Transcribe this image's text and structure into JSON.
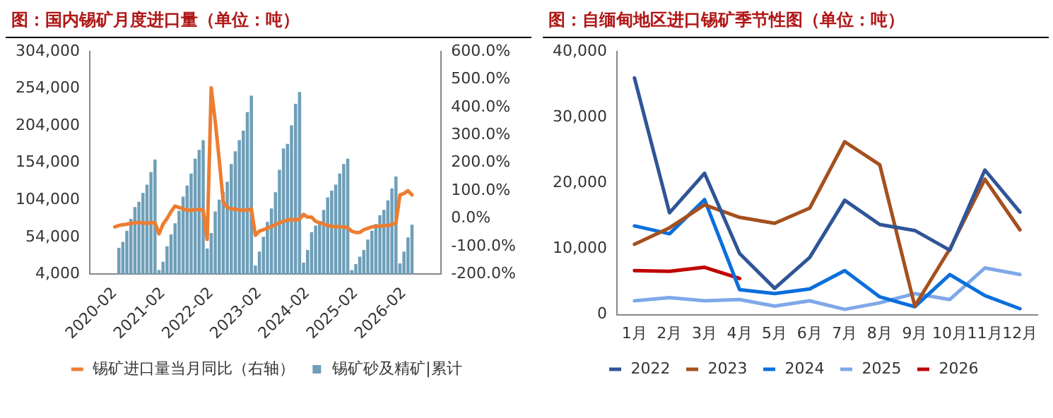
{
  "chart_data": [
    {
      "type": "bar",
      "title": "图：国内锡矿月度进口量（单位：吨）",
      "legend": "bottom",
      "x": [
        "2020-02",
        "2020-03",
        "2020-04",
        "2020-05",
        "2020-06",
        "2020-07",
        "2020-08",
        "2020-09",
        "2020-10",
        "2020-11",
        "2020-12",
        "2021-01",
        "2021-02",
        "2021-03",
        "2021-04",
        "2021-05",
        "2021-06",
        "2021-07",
        "2021-08",
        "2021-09",
        "2021-10",
        "2021-11",
        "2021-12",
        "2022-01",
        "2022-02",
        "2022-03",
        "2022-04",
        "2022-05",
        "2022-06",
        "2022-07",
        "2022-08",
        "2022-09",
        "2022-10",
        "2022-11",
        "2022-12",
        "2023-01",
        "2023-02",
        "2023-03",
        "2023-04",
        "2023-05",
        "2023-06",
        "2023-07",
        "2023-08",
        "2023-09",
        "2023-10",
        "2023-11",
        "2023-12",
        "2024-01",
        "2024-02",
        "2024-03",
        "2024-04",
        "2024-05",
        "2024-06",
        "2024-07",
        "2024-08",
        "2024-09",
        "2024-10",
        "2024-11",
        "2024-12",
        "2025-01",
        "2025-02",
        "2025-03",
        "2025-04",
        "2025-05",
        "2025-06",
        "2025-07",
        "2025-08",
        "2025-09",
        "2025-10",
        "2025-11",
        "2025-12",
        "2026-01",
        "2026-02",
        "2026-03",
        "2026-04"
      ],
      "xlim": [
        "2020-02",
        "2026-05"
      ],
      "xticks": [
        "2020-02",
        "2021-02",
        "2022-02",
        "2023-02",
        "2024-02",
        "2025-02",
        "2026-02"
      ],
      "ylim": [
        4000,
        304000
      ],
      "yticks": [
        {
          "value": 4000,
          "label": "4,000"
        },
        {
          "value": 54000,
          "label": "54,000"
        },
        {
          "value": 104000,
          "label": "104,000"
        },
        {
          "value": 154000,
          "label": "154,000"
        },
        {
          "value": 204000,
          "label": "204,000"
        },
        {
          "value": 254000,
          "label": "254,000"
        },
        {
          "value": 304000,
          "label": "304,000"
        }
      ],
      "y2lim": [
        -200,
        600
      ],
      "y2ticks": [
        {
          "value": -200,
          "label": "-200.0%"
        },
        {
          "value": -100,
          "label": "-100.0%"
        },
        {
          "value": 0,
          "label": "0.0%"
        },
        {
          "value": 100,
          "label": "100.0%"
        },
        {
          "value": 200,
          "label": "200.0%"
        },
        {
          "value": 300,
          "label": "300.0%"
        },
        {
          "value": 400,
          "label": "400.0%"
        },
        {
          "value": 500,
          "label": "500.0%"
        },
        {
          "value": 600,
          "label": "600.0%"
        }
      ],
      "series": [
        {
          "name": "锡矿砂及精矿|累计",
          "type": "bar",
          "color": "#6f9fb8",
          "values": [
            null,
            39000,
            47000,
            62000,
            78000,
            94000,
            101000,
            113000,
            124000,
            141000,
            158000,
            9000,
            20000,
            41000,
            57000,
            72000,
            89000,
            108000,
            123000,
            139000,
            159000,
            171000,
            184000,
            38000,
            59000,
            88000,
            104000,
            114000,
            128000,
            152000,
            169000,
            184000,
            197000,
            222000,
            244000,
            15000,
            34000,
            54000,
            74000,
            92000,
            114000,
            144000,
            173000,
            179000,
            204000,
            233000,
            249000,
            19000,
            36000,
            60000,
            69000,
            75000,
            90000,
            107000,
            116000,
            124000,
            139000,
            152000,
            159000,
            9000,
            17000,
            27000,
            36000,
            50000,
            62000,
            71000,
            83000,
            90000,
            103000,
            119000,
            135000,
            18000,
            34000,
            53000,
            70000
          ]
        },
        {
          "name": "锡矿进口量当月同比（右轴）",
          "type": "line",
          "axis": "y2",
          "color": "#ed7d31",
          "values": [
            -30,
            -25,
            -22,
            -20,
            -17,
            -15,
            -14,
            -16,
            -17,
            -15,
            -15,
            -55,
            -20,
            0,
            25,
            45,
            40,
            35,
            30,
            30,
            32,
            33,
            30,
            -75,
            470,
            350,
            210,
            60,
            40,
            35,
            33,
            32,
            30,
            30,
            35,
            -60,
            -45,
            -40,
            -35,
            -28,
            -22,
            -15,
            -10,
            -5,
            -3,
            -5,
            -2,
            15,
            5,
            5,
            -10,
            -15,
            -20,
            -25,
            -28,
            -30,
            -30,
            -30,
            -33,
            -45,
            -50,
            -50,
            -40,
            -35,
            -30,
            -28,
            -27,
            -25,
            -25,
            -22,
            -15,
            85,
            90,
            100,
            85
          ]
        }
      ]
    },
    {
      "type": "line",
      "title": "图：自缅甸地区进口锡矿季节性图（单位：吨）",
      "legend": "bottom",
      "categories": [
        "1月",
        "2月",
        "3月",
        "4月",
        "5月",
        "6月",
        "7月",
        "8月",
        "9月",
        "10月",
        "11月",
        "12月"
      ],
      "ylim": [
        0,
        40000
      ],
      "yticks": [
        {
          "value": 0,
          "label": "0"
        },
        {
          "value": 10000,
          "label": "10,000"
        },
        {
          "value": 20000,
          "label": "20,000"
        },
        {
          "value": 30000,
          "label": "30,000"
        },
        {
          "value": 40000,
          "label": "40,000"
        }
      ],
      "series": [
        {
          "name": "2022",
          "color": "#2f5597",
          "values": [
            36000,
            15500,
            21500,
            9300,
            4000,
            8700,
            17400,
            13700,
            12800,
            9800,
            22000,
            15600
          ]
        },
        {
          "name": "2023",
          "color": "#a5501e",
          "values": [
            10700,
            13200,
            16700,
            14800,
            13900,
            16200,
            26300,
            22800,
            1300,
            10000,
            20600,
            12900
          ]
        },
        {
          "name": "2024",
          "color": "#0a6fdc",
          "values": [
            13500,
            12300,
            17500,
            3800,
            3200,
            3900,
            6700,
            2700,
            1200,
            6100,
            2900,
            900
          ]
        },
        {
          "name": "2025",
          "color": "#7fa8e8",
          "values": [
            2100,
            2600,
            2100,
            2300,
            1300,
            2100,
            800,
            1800,
            3200,
            2300,
            7100,
            6100
          ]
        },
        {
          "name": "2026",
          "color": "#c00000",
          "values": [
            6700,
            6600,
            7200,
            5500,
            null,
            null,
            null,
            null,
            null,
            null,
            null,
            null
          ]
        }
      ]
    }
  ]
}
